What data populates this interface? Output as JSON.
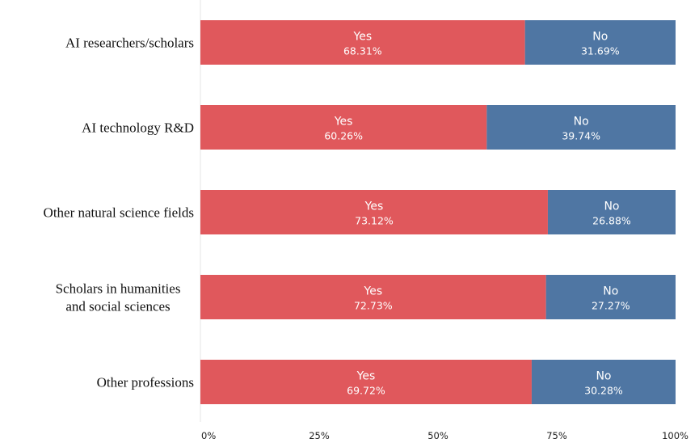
{
  "chart_data": {
    "type": "bar",
    "orientation": "horizontal",
    "stacked": true,
    "categories": [
      [
        "AI researchers/scholars"
      ],
      [
        "AI technology R&D"
      ],
      [
        "Other natural science fields"
      ],
      [
        "Scholars in humanities",
        "and social sciences"
      ],
      [
        "Other professions"
      ]
    ],
    "series": [
      {
        "name": "Yes",
        "color": "#e0585c",
        "values": [
          68.31,
          60.26,
          73.12,
          72.73,
          69.72
        ],
        "labels": [
          "68.31%",
          "60.26%",
          "73.12%",
          "72.73%",
          "69.72%"
        ]
      },
      {
        "name": "No",
        "color": "#4f76a3",
        "values": [
          31.69,
          39.74,
          26.88,
          27.27,
          30.28
        ],
        "labels": [
          "31.69%",
          "39.74%",
          "26.88%",
          "27.27%",
          "30.28%"
        ]
      }
    ],
    "x_ticks": [
      "0%",
      "25%",
      "50%",
      "75%",
      "100%"
    ],
    "xlim": [
      0,
      100
    ],
    "grid": false,
    "legend": "none",
    "title": "",
    "xlabel": "",
    "ylabel": ""
  }
}
